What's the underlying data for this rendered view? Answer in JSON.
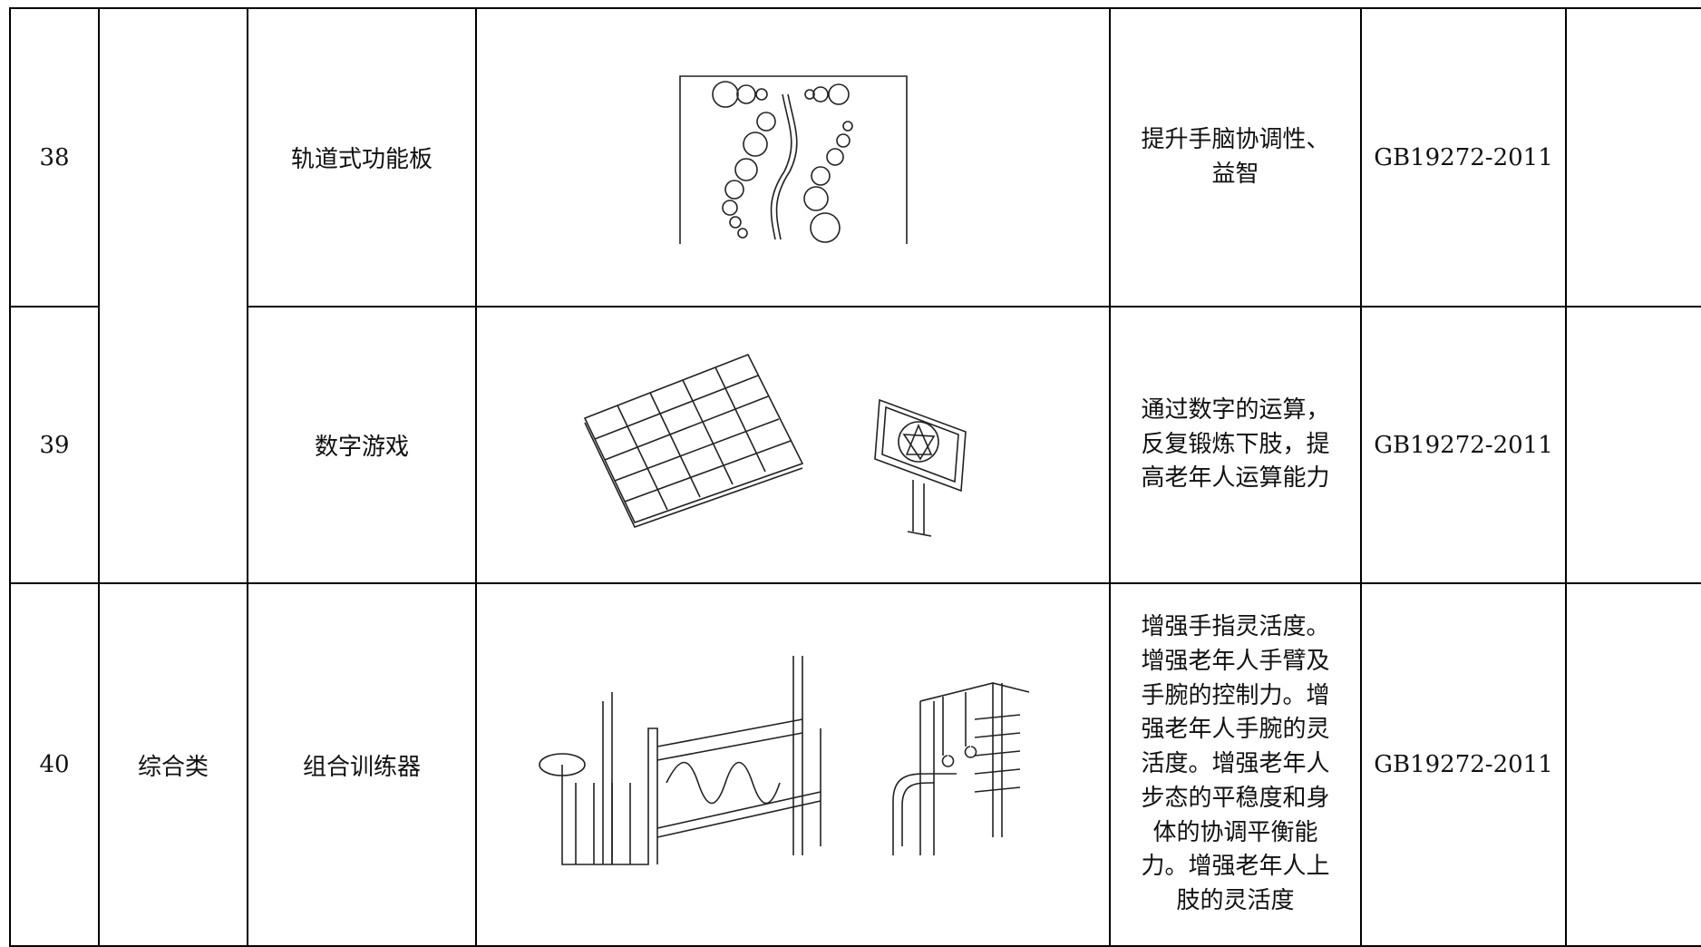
{
  "table": {
    "rows": [
      {
        "number": "38",
        "name": "轨道式功能板",
        "description": "提升手脑协调性、益智",
        "standard": "GB19272-2011"
      },
      {
        "number": "39",
        "name": "数字游戏",
        "description": "通过数字的运算，反复锻炼下肢，提高老年人运算能力",
        "standard": "GB19272-2011"
      },
      {
        "number": "40",
        "category": "综合类",
        "name": "组合训练器",
        "description": "增强手指灵活度。增强老年人手臂及手腕的控制力。增强老年人手腕的灵活度。增强老年人步态的平稳度和身体的协调平衡能力。增强老年人上肢的灵活度",
        "standard": "GB19272-2011"
      }
    ]
  }
}
